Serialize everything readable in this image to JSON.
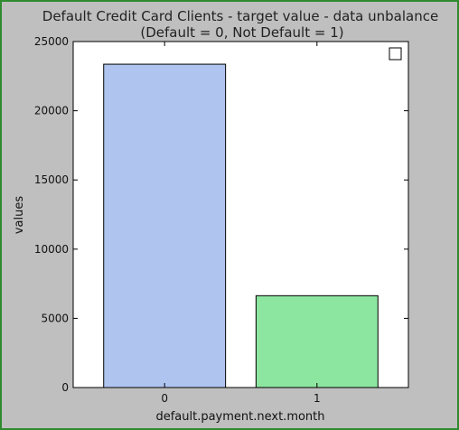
{
  "chart_data": {
    "type": "bar",
    "title_line1": "Default Credit Card Clients - target value - data unbalance",
    "title_line2": "(Default = 0, Not Default = 1)",
    "xlabel": "default.payment.next.month",
    "ylabel": "values",
    "categories": [
      "0",
      "1"
    ],
    "values": [
      23364,
      6636
    ],
    "colors": [
      "#b0c4f0",
      "#8de6a0"
    ],
    "ylim": [
      0,
      25000
    ],
    "yticks": [
      "0",
      "5000",
      "10000",
      "15000",
      "20000",
      "25000"
    ],
    "ytick_values": [
      0,
      5000,
      10000,
      15000,
      20000,
      25000
    ],
    "grid": false,
    "legend": "top-right"
  }
}
